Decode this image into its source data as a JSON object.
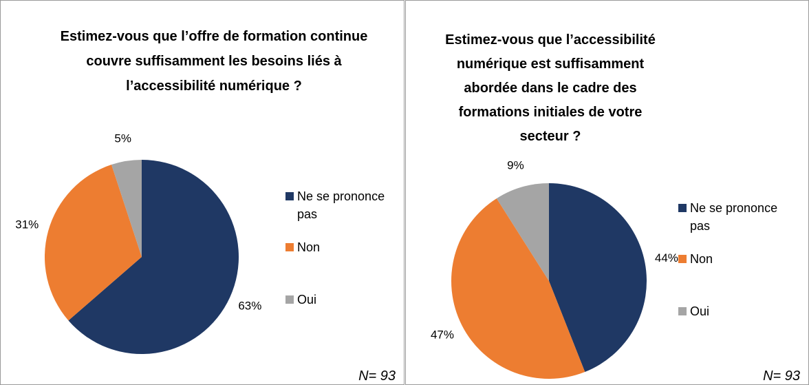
{
  "chart_data": [
    {
      "type": "pie",
      "title": "Estimez-vous que l’offre de formation continue couvre suffisamment les besoins liés à l’accessibilité numérique ?",
      "categories": [
        "Ne se prononce pas",
        "Non",
        "Oui"
      ],
      "values": [
        63,
        31,
        5
      ],
      "value_labels": [
        "63%",
        "31%",
        "5%"
      ],
      "colors": [
        "#1f3864",
        "#ed7d31",
        "#a5a5a5"
      ],
      "note": "N= 93"
    },
    {
      "type": "pie",
      "title": "Estimez-vous que l’accessibilité numérique est suffisamment abordée dans le cadre des formations initiales de votre secteur ?",
      "categories": [
        "Ne se prononce pas",
        "Non",
        "Oui"
      ],
      "values": [
        44,
        47,
        9
      ],
      "value_labels": [
        "44%",
        "47%",
        "9%"
      ],
      "colors": [
        "#1f3864",
        "#ed7d31",
        "#a5a5a5"
      ],
      "note": "N= 93"
    }
  ]
}
